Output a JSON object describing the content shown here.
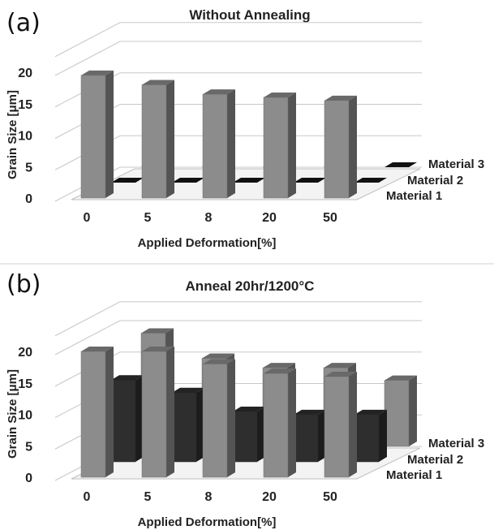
{
  "chart_data": [
    {
      "panel_label": "(a)",
      "type": "bar",
      "title": "Without Annealing",
      "xlabel": "Applied Deformation[%]",
      "ylabel": "Grain Size [μm]",
      "yticks": [
        "0",
        "5",
        "10",
        "15",
        "20"
      ],
      "ylim": [
        0,
        20
      ],
      "grid": true,
      "categories": [
        "0",
        "5",
        "8",
        "20",
        "50"
      ],
      "series": [
        {
          "name": "Material 1",
          "values": [
            19.5,
            18,
            16.5,
            16,
            15.5
          ],
          "color": "#8c8c8c"
        },
        {
          "name": "Material 2",
          "values": [
            0,
            0,
            0,
            0,
            0
          ],
          "color": "#2e2e2e"
        },
        {
          "name": "Material 3",
          "values": [
            0,
            0,
            0,
            0,
            0
          ],
          "color": "#8c8c8c"
        }
      ]
    },
    {
      "panel_label": "(b)",
      "type": "bar",
      "title": "Anneal 20hr/1200°C",
      "xlabel": "Applied Deformation[%]",
      "ylabel": "Grain Size [μm]",
      "yticks": [
        "0",
        "5",
        "10",
        "15",
        "20"
      ],
      "ylim": [
        0,
        20
      ],
      "grid": true,
      "categories": [
        "0",
        "5",
        "8",
        "20",
        "50"
      ],
      "series": [
        {
          "name": "Material 1",
          "values": [
            20,
            20,
            18,
            16.5,
            16
          ],
          "color": "#8c8c8c"
        },
        {
          "name": "Material 2",
          "values": [
            13,
            11,
            8,
            7.5,
            7.5
          ],
          "color": "#2e2e2e"
        },
        {
          "name": "Material 3",
          "values": [
            18,
            14,
            12.5,
            12.5,
            10.5
          ],
          "color": "#8c8c8c"
        }
      ]
    }
  ]
}
